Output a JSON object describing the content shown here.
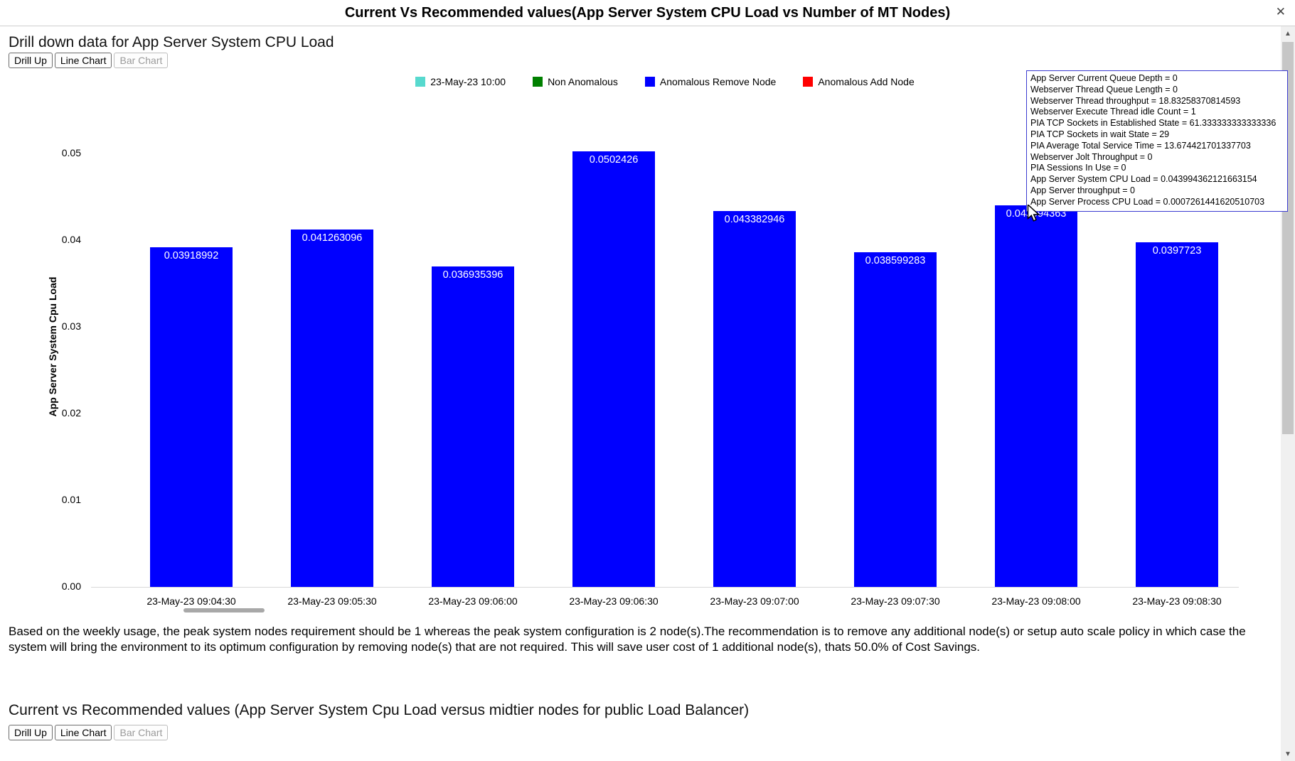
{
  "window": {
    "title": "Current Vs Recommended values(App Server System CPU Load vs Number of MT Nodes)"
  },
  "icons": {
    "close": "✕",
    "scroll_up": "▲",
    "scroll_down": "▼"
  },
  "section1": {
    "heading": "Drill down data for App Server System CPU Load",
    "buttons": {
      "drill_up": "Drill Up",
      "line_chart": "Line Chart",
      "bar_chart": "Bar Chart"
    }
  },
  "legend": [
    {
      "label": "23-May-23 10:00",
      "color": "#57D9CE"
    },
    {
      "label": "Non Anomalous",
      "color": "#008000"
    },
    {
      "label": "Anomalous Remove Node",
      "color": "#0000FF"
    },
    {
      "label": "Anomalous Add Node",
      "color": "#FF0000"
    }
  ],
  "chart_data": {
    "type": "bar",
    "title": "",
    "xlabel": "",
    "ylabel": "App Server System Cpu Load",
    "ylim": [
      0,
      0.053
    ],
    "grid": false,
    "legend_position": "top",
    "bar_color": "#0000FF",
    "ytick_labels": [
      "0.00",
      "0.01",
      "0.02",
      "0.03",
      "0.04",
      "0.05"
    ],
    "categories": [
      "23-May-23 09:04:30",
      "23-May-23 09:05:30",
      "23-May-23 09:06:00",
      "23-May-23 09:06:30",
      "23-May-23 09:07:00",
      "23-May-23 09:07:30",
      "23-May-23 09:08:00",
      "23-May-23 09:08:30"
    ],
    "values": [
      0.03918992,
      0.041263096,
      0.036935396,
      0.0502426,
      0.043382946,
      0.038599283,
      0.043994363,
      0.0397723
    ],
    "value_labels": [
      "0.03918992",
      "0.041263096",
      "0.036935396",
      "0.0502426",
      "0.043382946",
      "0.038599283",
      "0.043994363",
      "0.0397723"
    ]
  },
  "tooltip": {
    "lines": [
      "App Server Current Queue Depth = 0",
      "Webserver Thread Queue Length = 0",
      "Webserver Thread throughput = 18.83258370814593",
      "Webserver Execute Thread idle Count = 1",
      "PIA TCP Sockets in Established State = 61.333333333333336",
      "PIA TCP Sockets in wait State = 29",
      "PIA Average Total Service Time = 13.674421701337703",
      "Webserver Jolt Throughput = 0",
      "PIA Sessions In Use = 0",
      "App Server System CPU Load = 0.043994362121663154",
      "App Server throughput = 0",
      "App Server Process CPU Load = 0.0007261441620510703"
    ]
  },
  "summary": {
    "text": "Based on the weekly usage, the peak system nodes requirement should be 1 whereas the peak system configuration is 2 node(s).The recommendation is to remove any additional node(s) or setup auto scale policy in which case the system will bring the environment to its optimum configuration by removing node(s) that are not required. This will save user cost of 1 additional node(s), thats 50.0% of Cost Savings."
  },
  "section2": {
    "heading": "Current vs Recommended values (App Server System Cpu Load versus midtier nodes for public Load Balancer)",
    "buttons": {
      "drill_up": "Drill Up",
      "line_chart": "Line Chart",
      "bar_chart": "Bar Chart"
    }
  }
}
